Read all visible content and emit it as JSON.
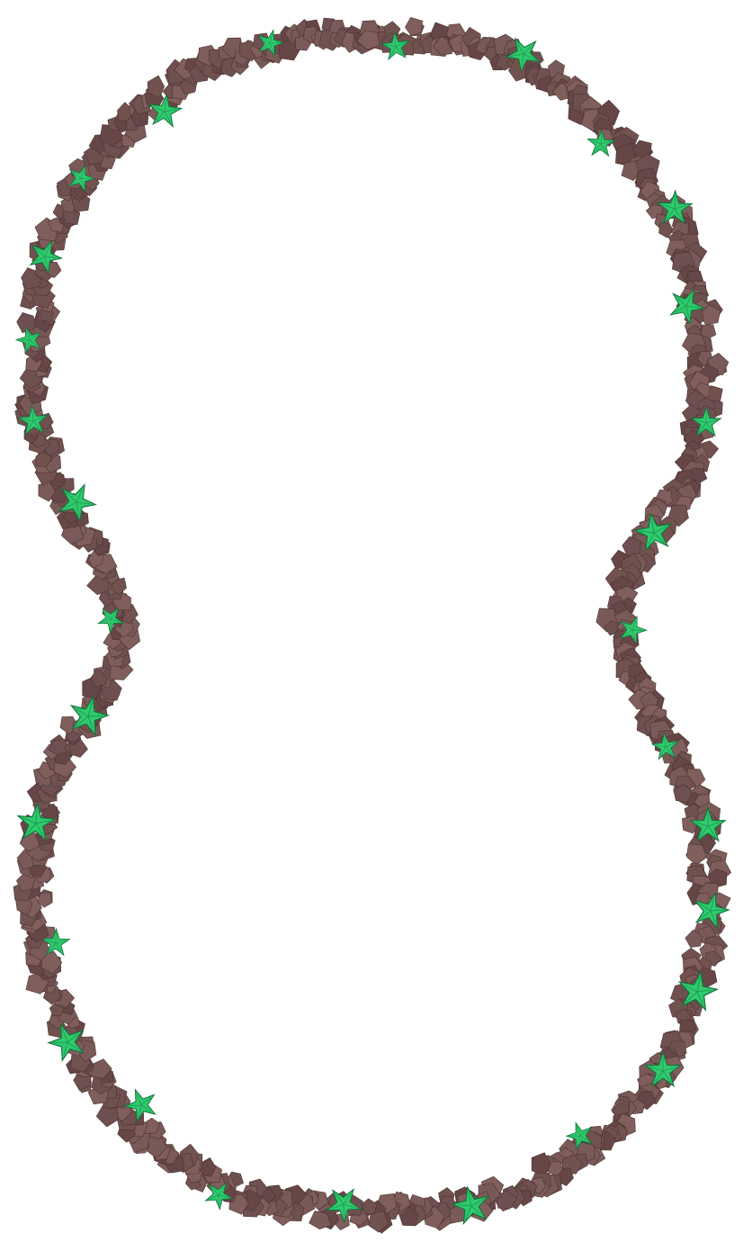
{
  "frame": {
    "shape": "peanut-outline",
    "stone_colors": [
      "#6f5050",
      "#7a5a58",
      "#664646",
      "#72524f",
      "#805e5c"
    ],
    "leaf_color": "#2fcb6e",
    "leaf_outline_color": "#14733c",
    "background": "#ffffff",
    "icons": [
      "stone-tile-icon",
      "ivy-leaf-icon"
    ]
  }
}
